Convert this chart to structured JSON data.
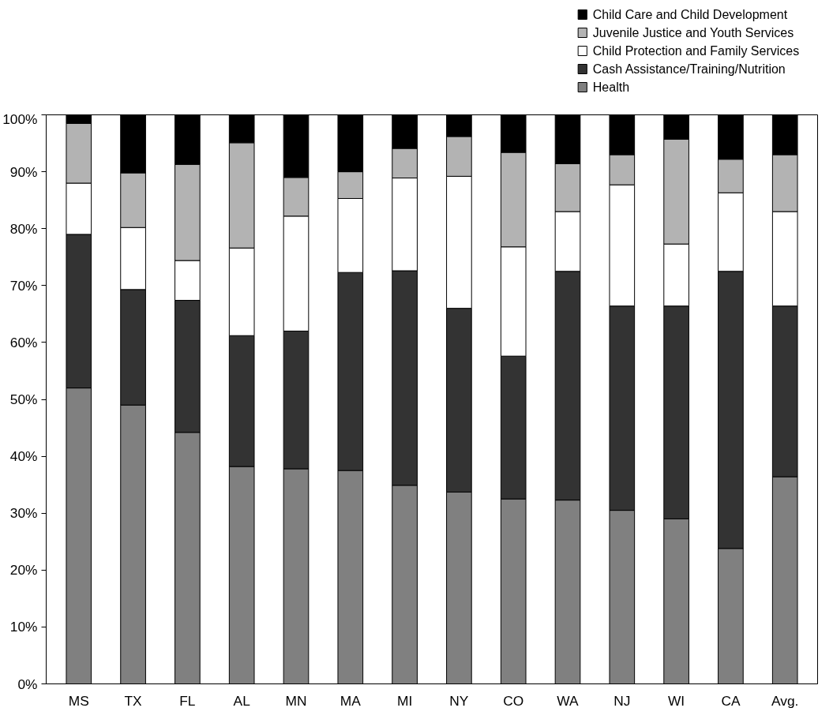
{
  "chart_data": {
    "type": "bar",
    "stacked": true,
    "categories": [
      "MS",
      "TX",
      "FL",
      "AL",
      "MN",
      "MA",
      "MI",
      "NY",
      "CO",
      "WA",
      "NJ",
      "WI",
      "CA",
      "Avg."
    ],
    "series": [
      {
        "name": "Health",
        "color": "#808080",
        "values": [
          52,
          49,
          44.2,
          38.2,
          37.8,
          37.5,
          34.9,
          33.7,
          32.5,
          32.3,
          30.5,
          29,
          23.8,
          36.4
        ]
      },
      {
        "name": "Cash Assistance/Training/Nutrition",
        "color": "#333333",
        "values": [
          27,
          20.3,
          23.2,
          23,
          24.2,
          34.8,
          37.7,
          32.3,
          25.1,
          40.2,
          35.9,
          37.4,
          48.7,
          30
        ]
      },
      {
        "name": "Child Protection and Family Services",
        "color": "#ffffff",
        "values": [
          9,
          10.9,
          7,
          15.4,
          20.2,
          13,
          16.3,
          23.2,
          19.2,
          10.5,
          21.3,
          10.9,
          13.8,
          16.6
        ]
      },
      {
        "name": "Juvenile Justice and Youth Services",
        "color": "#b3b3b3",
        "values": [
          10.5,
          9.6,
          16.9,
          18.5,
          6.8,
          4.7,
          5.2,
          7,
          16.6,
          8.4,
          5.3,
          18.4,
          5.9,
          10
        ]
      },
      {
        "name": "Child Care and Child Development",
        "color": "#000000",
        "values": [
          1.5,
          10.2,
          8.7,
          4.9,
          11,
          10,
          5.9,
          3.8,
          6.6,
          8.6,
          7,
          4.3,
          7.8,
          7
        ]
      }
    ],
    "ylim": [
      0,
      100
    ],
    "yticks": [
      {
        "value": 0,
        "label": "0%"
      },
      {
        "value": 10,
        "label": "10%"
      },
      {
        "value": 20,
        "label": "20%"
      },
      {
        "value": 30,
        "label": "30%"
      },
      {
        "value": 40,
        "label": "40%"
      },
      {
        "value": 50,
        "label": "50%"
      },
      {
        "value": 60,
        "label": "60%"
      },
      {
        "value": 70,
        "label": "70%"
      },
      {
        "value": 80,
        "label": "80%"
      },
      {
        "value": 90,
        "label": "90%"
      },
      {
        "value": 100,
        "label": "100%"
      }
    ],
    "grid": false,
    "legend": "top right"
  }
}
